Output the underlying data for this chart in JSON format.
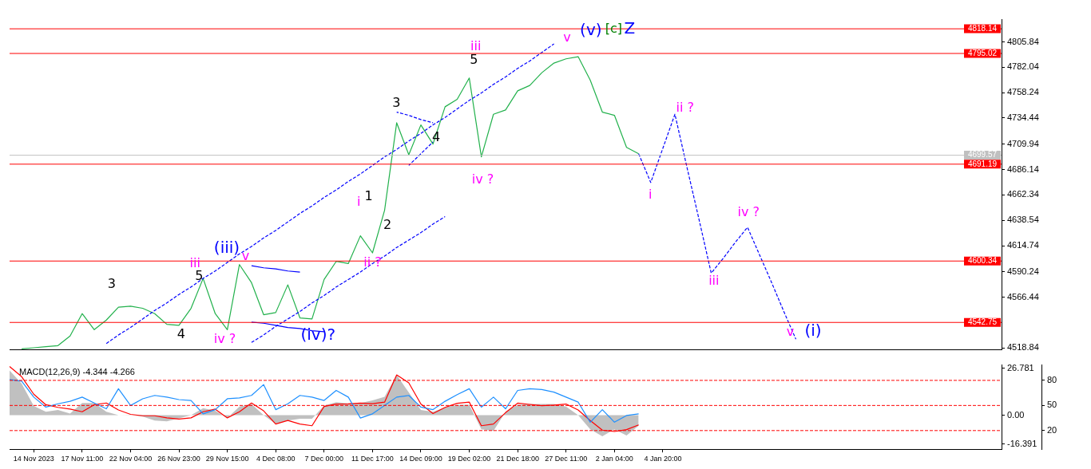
{
  "chart_data": [
    {
      "type": "line",
      "ylim": [
        4517.2,
        4827.2
      ],
      "categories": [
        null,
        null,
        null,
        null,
        null,
        null,
        null,
        null,
        null,
        null,
        null,
        null,
        null,
        null,
        null,
        null,
        null,
        null,
        null,
        null,
        null,
        null,
        null,
        null,
        null,
        null,
        null,
        null,
        null,
        null,
        null,
        null,
        null,
        null,
        null,
        null,
        null,
        null,
        null,
        null,
        null,
        null,
        null,
        null,
        null,
        null,
        null,
        null,
        null,
        null,
        null,
        null,
        null,
        null,
        null,
        null,
        null,
        null,
        null,
        null,
        null,
        null,
        null,
        null,
        null,
        null,
        null,
        null,
        null,
        null,
        null,
        null,
        null,
        null,
        null,
        null,
        null,
        null,
        null,
        null,
        null,
        null,
        null
      ],
      "yticks": [
        4518.84,
        4566.44,
        4590.24,
        4614.74,
        4638.54,
        4662.34,
        4686.14,
        4709.94,
        4734.44,
        4758.24,
        4782.04,
        4805.84
      ],
      "tick_labels": "y",
      "series": [
        {
          "color": "#22b14c",
          "values": [
            null,
            4518,
            4519,
            4520,
            4521,
            4530,
            4551,
            4536,
            4545,
            4557,
            4558,
            4556,
            4551,
            4541,
            4540,
            4556,
            4584,
            4551,
            4536,
            4597,
            4580,
            4550,
            4552,
            4578,
            4547,
            4546,
            4583,
            4600,
            4598,
            4624,
            4608,
            4648,
            4730,
            4700,
            4728,
            4710,
            4745,
            4752,
            4772,
            4698,
            4738,
            4742,
            4760,
            4765,
            4777,
            4786,
            4790,
            4792,
            4770,
            4740,
            4737,
            4707,
            4701,
            null,
            null,
            null,
            null,
            null,
            null,
            null,
            null,
            null,
            null,
            null,
            null,
            null,
            null,
            null,
            null,
            null,
            null,
            null,
            null,
            null,
            null,
            null,
            null,
            null,
            null,
            null,
            null,
            null,
            null
          ]
        },
        {
          "color": "#0000ff",
          "line_style": "dashed",
          "values": [
            null,
            null,
            null,
            null,
            null,
            null,
            null,
            null,
            null,
            null,
            null,
            null,
            null,
            null,
            null,
            null,
            null,
            null,
            null,
            null,
            null,
            null,
            null,
            null,
            null,
            null,
            null,
            null,
            null,
            null,
            null,
            null,
            null,
            null,
            null,
            null,
            null,
            null,
            null,
            null,
            null,
            null,
            null,
            null,
            null,
            null,
            null,
            null,
            null,
            null,
            null,
            null,
            4701,
            4674,
            4706,
            4738,
            4688,
            4639,
            4589,
            4603,
            4618,
            4632,
            4606,
            4580,
            4553,
            4527,
            null,
            null,
            null,
            null,
            null,
            null,
            null,
            null,
            null,
            null,
            null,
            null,
            null,
            null,
            null,
            null,
            null
          ]
        },
        {
          "color": "#0000ff",
          "line_style": "dashed",
          "values": [
            null,
            null,
            null,
            null,
            null,
            null,
            null,
            null,
            4523,
            4531,
            4538,
            4546,
            4554,
            4561,
            4569,
            4576,
            4584,
            4591,
            4599,
            4607,
            4614,
            4622,
            4629,
            4637,
            4645,
            4652,
            4660,
            4667,
            4675,
            4682,
            4690,
            4698,
            4705,
            4713,
            4720,
            4728,
            4735,
            4743,
            4751,
            4758,
            4766,
            4773,
            4781,
            4788,
            4796,
            4804,
            null,
            null,
            null,
            null,
            null,
            null,
            null,
            null,
            null,
            null,
            null,
            null,
            null,
            null,
            null,
            null,
            null,
            null,
            null,
            null,
            null,
            null,
            null,
            null,
            null,
            null,
            null,
            null,
            null,
            null,
            null,
            null,
            null,
            null,
            null,
            null,
            null
          ]
        },
        {
          "color": "#0000ff",
          "line_style": "dashed",
          "values": [
            null,
            null,
            null,
            null,
            null,
            null,
            null,
            null,
            null,
            null,
            null,
            null,
            null,
            null,
            null,
            null,
            null,
            null,
            null,
            null,
            4524,
            4531,
            4539,
            4546,
            4553,
            4561,
            4568,
            4576,
            4583,
            4590,
            4598,
            4605,
            4613,
            4620,
            4627,
            4635,
            4642,
            null,
            null,
            null,
            null,
            null,
            null,
            null,
            null,
            null,
            null,
            null,
            null,
            null,
            null,
            null,
            null,
            null,
            null,
            null,
            null,
            null,
            null,
            null,
            null,
            null,
            null,
            null,
            null,
            null,
            null,
            null,
            null,
            null,
            null,
            null,
            null,
            null,
            null,
            null,
            null,
            null,
            null,
            null,
            null,
            null,
            null
          ]
        },
        {
          "color": "#0000ff",
          "line_style": "solid",
          "values": [
            null,
            null,
            null,
            null,
            null,
            null,
            null,
            null,
            null,
            null,
            null,
            null,
            null,
            null,
            null,
            null,
            null,
            null,
            null,
            null,
            4596,
            4594,
            4593,
            4591,
            4590,
            null,
            null,
            null,
            null,
            null,
            null,
            null,
            null,
            null,
            null,
            null,
            null,
            null,
            null,
            null,
            null,
            null,
            null,
            null,
            null,
            null,
            null,
            null,
            null,
            null,
            null,
            null,
            null,
            null,
            null,
            null,
            null,
            null,
            null,
            null,
            null,
            null,
            null,
            null,
            null,
            null,
            null,
            null,
            null,
            null,
            null,
            null,
            null,
            null,
            null,
            null,
            null,
            null,
            null,
            null,
            null,
            null,
            null
          ]
        },
        {
          "color": "#0000ff",
          "line_style": "solid",
          "values": [
            null,
            null,
            null,
            null,
            null,
            null,
            null,
            null,
            null,
            null,
            null,
            null,
            null,
            null,
            null,
            null,
            null,
            null,
            null,
            null,
            4543,
            4542,
            4540,
            4538,
            4537,
            4535,
            4534,
            null,
            null,
            null,
            null,
            null,
            null,
            null,
            null,
            null,
            null,
            null,
            null,
            null,
            null,
            null,
            null,
            null,
            null,
            null,
            null,
            null,
            null,
            null,
            null,
            null,
            null,
            null,
            null,
            null,
            null,
            null,
            null,
            null,
            null,
            null,
            null,
            null,
            null,
            null,
            null,
            null,
            null,
            null,
            null,
            null,
            null,
            null,
            null,
            null,
            null,
            null,
            null,
            null,
            null,
            null,
            null
          ]
        },
        {
          "color": "#0000ff",
          "line_style": "dashed",
          "values": [
            null,
            null,
            null,
            null,
            null,
            null,
            null,
            null,
            null,
            null,
            null,
            null,
            null,
            null,
            null,
            null,
            null,
            null,
            null,
            null,
            null,
            null,
            null,
            null,
            null,
            null,
            null,
            null,
            null,
            null,
            null,
            null,
            4740,
            4737,
            4733,
            4730,
            null,
            null,
            null,
            null,
            null,
            null,
            null,
            null,
            null,
            null,
            null,
            null,
            null,
            null,
            null,
            null,
            null,
            null,
            null,
            null,
            null,
            null,
            null,
            null,
            null,
            null,
            null,
            null,
            null,
            null,
            null,
            null,
            null,
            null,
            null,
            null,
            null,
            null,
            null,
            null,
            null,
            null,
            null,
            null,
            null,
            null,
            null
          ]
        },
        {
          "color": "#0000ff",
          "line_style": "dashed",
          "values": [
            null,
            null,
            null,
            null,
            null,
            null,
            null,
            null,
            null,
            null,
            null,
            null,
            null,
            null,
            null,
            null,
            null,
            null,
            null,
            null,
            null,
            null,
            null,
            null,
            null,
            null,
            null,
            null,
            null,
            null,
            null,
            null,
            null,
            4690,
            4701,
            4712,
            null,
            null,
            null,
            null,
            null,
            null,
            null,
            null,
            null,
            null,
            null,
            null,
            null,
            null,
            null,
            null,
            null,
            null,
            null,
            null,
            null,
            null,
            null,
            null,
            null,
            null,
            null,
            null,
            null,
            null,
            null,
            null,
            null,
            null,
            null,
            null,
            null,
            null,
            null,
            null,
            null,
            null,
            null,
            null,
            null,
            null,
            null
          ]
        }
      ],
      "ref_lines": [
        {
          "axis": "y",
          "value": 4818.14,
          "label": "4818.14",
          "color": "#ff0000"
        },
        {
          "axis": "y",
          "value": 4795.02,
          "label": "4795.02",
          "color": "#ff0000"
        },
        {
          "axis": "y",
          "value": 4699.57,
          "label": "4699.57",
          "color": "#c0c0c0"
        },
        {
          "axis": "y",
          "value": 4691.19,
          "label": "4691.19",
          "color": "#ff0000"
        },
        {
          "axis": "y",
          "value": 4600.34,
          "label": "4600.34",
          "color": "#ff0000"
        },
        {
          "axis": "y",
          "value": 4542.75,
          "label": "4542.75",
          "color": "#ff0000"
        }
      ],
      "annotations": [
        "3",
        "4",
        "iii",
        "5",
        "(iii)",
        "v",
        "iv ?",
        "(iv)?",
        "i",
        "1",
        "2",
        "ii ?",
        "3",
        "4",
        "iii",
        "5",
        "iv ?",
        "v",
        "(v)",
        "[c]",
        "Z",
        "i",
        "ii ?",
        "iii",
        "iv ?",
        "v",
        "(i)"
      ]
    },
    {
      "type": "line",
      "title": "MACD(12,26,9) -4.344 -4.266",
      "categories": [
        null,
        null,
        "14 Nov 2023",
        null,
        null,
        null,
        "17 Nov 11:00",
        null,
        null,
        null,
        "22 Nov 04:00",
        null,
        null,
        null,
        "26 Nov 23:00",
        null,
        null,
        null,
        "29 Nov 15:00",
        null,
        null,
        null,
        "4 Dec 08:00",
        null,
        null,
        null,
        "7 Dec 00:00",
        null,
        null,
        null,
        "11 Dec 17:00",
        null,
        null,
        null,
        "14 Dec 09:00",
        null,
        null,
        null,
        "19 Dec 02:00",
        null,
        null,
        null,
        "21 Dec 18:00",
        null,
        null,
        null,
        "27 Dec 11:00",
        null,
        null,
        null,
        "2 Jan 04:00",
        null,
        null,
        null,
        "4 Jan 20:00",
        null,
        null,
        null,
        null,
        null,
        null,
        null,
        null,
        null,
        null,
        null,
        null,
        null,
        null,
        null,
        null,
        null,
        null,
        null,
        null,
        null,
        null,
        null,
        null,
        null,
        null,
        null,
        null
      ],
      "ylim": [
        -19.4,
        28.7
      ],
      "yticks": [
        -16.391,
        {
          "value": 0,
          "label": "0.00"
        },
        26.781
      ],
      "y2lim": [
        -2.3,
        98.4
      ],
      "y2ticks": [
        20,
        50,
        80
      ],
      "series": [
        {
          "type": "area",
          "color": "#c0c0c0",
          "values": [
            25.6,
            18,
            5.3,
            2,
            3,
            1,
            7,
            7,
            2,
            0,
            0.2,
            -0.8,
            -3,
            -3.5,
            -1.8,
            0,
            4,
            2.5,
            -1.5,
            5,
            6.4,
            0,
            -5,
            -3,
            -2,
            -2,
            5.5,
            7.5,
            6.8,
            7,
            8.5,
            10.5,
            23,
            13,
            3,
            2,
            4.5,
            6,
            6,
            -8,
            -9,
            2,
            6,
            6.4,
            6.4,
            6.4,
            5,
            0,
            -8,
            -12,
            -8,
            -11.6,
            -6,
            null,
            null,
            null,
            null,
            null,
            null,
            null,
            null,
            null,
            null,
            null,
            null,
            null,
            null,
            null,
            null,
            null,
            null,
            null,
            null,
            null,
            null,
            null,
            null,
            null,
            null,
            null,
            null,
            null,
            null
          ]
        },
        {
          "type": "line",
          "color": "#ff0000",
          "values": [
            27.8,
            22,
            12,
            6,
            4.5,
            3.5,
            2,
            6,
            7,
            3,
            0.5,
            -0.3,
            -0.3,
            -1.5,
            -2.2,
            -1.5,
            2,
            3.5,
            -1.5,
            2,
            7,
            2.5,
            -5,
            -3,
            -5,
            -6,
            5,
            6.4,
            6.5,
            6.9,
            6.6,
            7.5,
            23,
            18.5,
            6.4,
            1,
            4.5,
            6.8,
            7.5,
            -6,
            -5,
            1.5,
            6.9,
            6.2,
            5.5,
            5.8,
            6.4,
            3,
            -3,
            -8.5,
            -9.3,
            -8.2,
            -5.5,
            null,
            null,
            null,
            null,
            null,
            null,
            null,
            null,
            null,
            null,
            null,
            null,
            null,
            null,
            null,
            null,
            null,
            null,
            null,
            null,
            null,
            null,
            null,
            null,
            null,
            null,
            null,
            null,
            null,
            null
          ]
        },
        {
          "type": "line",
          "color": "#1e90ff",
          "axis": "y2",
          "values": [
            81,
            79,
            60,
            48,
            52,
            55,
            60,
            53,
            46,
            70,
            50,
            58,
            62,
            60,
            57,
            56,
            40,
            45,
            58,
            59,
            62,
            75,
            45,
            52,
            62,
            60,
            56,
            68,
            60,
            35,
            40,
            50,
            60,
            62,
            48,
            45,
            55,
            63,
            70,
            48,
            60,
            46,
            68,
            70,
            69,
            66,
            60,
            54,
            30,
            45,
            30,
            38,
            40,
            null,
            null,
            null,
            null,
            null,
            null,
            null,
            null,
            null,
            null,
            null,
            null,
            null,
            null,
            null,
            null,
            null,
            null,
            null,
            null,
            null,
            null,
            null,
            null,
            null,
            null,
            null,
            null,
            null,
            null
          ]
        }
      ],
      "ref_lines": [
        {
          "axis": "y2",
          "value": 80,
          "color": "#ff0000",
          "line_style": "dashed"
        },
        {
          "axis": "y2",
          "value": 50,
          "color": "#ff0000",
          "line_style": "dashed"
        },
        {
          "axis": "y2",
          "value": 20,
          "color": "#ff0000",
          "line_style": "dashed"
        }
      ]
    }
  ]
}
